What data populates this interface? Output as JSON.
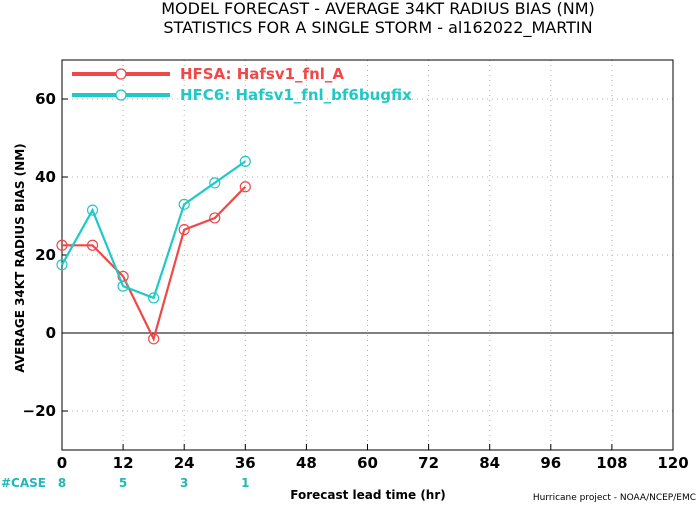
{
  "chart_data": {
    "type": "line",
    "title": "MODEL FORECAST - AVERAGE 34KT RADIUS BIAS (NM)",
    "subtitle": "STATISTICS FOR A SINGLE STORM - al162022_MARTIN",
    "xlabel": "Forecast lead time (hr)",
    "ylabel": "AVERAGE 34KT RADIUS BIAS (NM)",
    "xlim": [
      0,
      120
    ],
    "ylim": [
      -30,
      70
    ],
    "x_ticks": [
      0,
      12,
      24,
      36,
      48,
      60,
      72,
      84,
      96,
      108,
      120
    ],
    "y_ticks": [
      -20,
      0,
      20,
      40,
      60
    ],
    "grid": true,
    "legend_position": "top-left",
    "series": [
      {
        "name": "HFSA: Hafsv1_fnl_A",
        "color": "#f04848",
        "x": [
          0,
          6,
          12,
          18,
          24,
          30,
          36
        ],
        "values": [
          22.5,
          22.5,
          14.5,
          -1.5,
          26.5,
          29.5,
          37.5
        ]
      },
      {
        "name": "HFC6: Hafsv1_fnl_bf6bugfix",
        "color": "#20c8c8",
        "x": [
          0,
          6,
          12,
          18,
          24,
          30,
          36
        ],
        "values": [
          17.5,
          31.5,
          12,
          9,
          33,
          38.5,
          44
        ]
      }
    ],
    "cases_label": "#CASE",
    "cases": [
      {
        "x": 0,
        "count": "8"
      },
      {
        "x": 12,
        "count": "5"
      },
      {
        "x": 24,
        "count": "3"
      },
      {
        "x": 36,
        "count": "1"
      }
    ],
    "credit": "Hurricane project - NOAA/NCEP/EMC"
  }
}
